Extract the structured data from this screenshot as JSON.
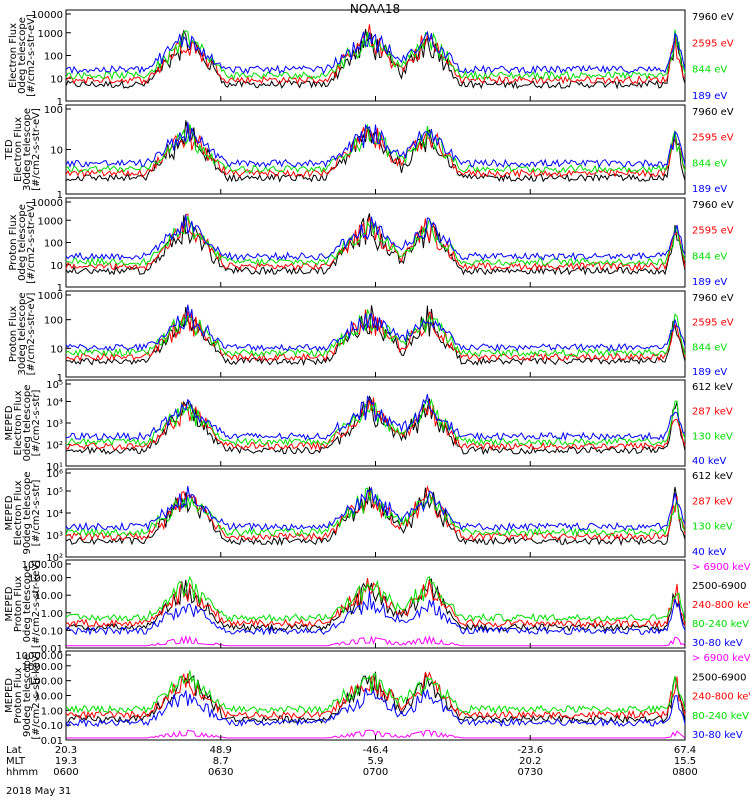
{
  "title": "NOAA18",
  "date_label": "2018 May 31",
  "colors": {
    "black": "#000000",
    "red": "#ff0000",
    "green": "#00e000",
    "blue": "#0000ff",
    "magenta": "#ff00ff"
  },
  "chart_data": {
    "type": "line",
    "x_ticks": [
      {
        "lat": "20.3",
        "mlt": "19.3",
        "hhmm": "0600"
      },
      {
        "lat": "48.9",
        "mlt": "8.7",
        "hhmm": "0630"
      },
      {
        "lat": "-46.4",
        "mlt": "5.9",
        "hhmm": "0700"
      },
      {
        "lat": "-23.6",
        "mlt": "20.2",
        "hhmm": "0730"
      },
      {
        "lat": "67.4",
        "mlt": "15.5",
        "hhmm": "0800"
      }
    ],
    "x_row_labels": [
      "Lat",
      "MLT",
      "hhmm"
    ],
    "panels": [
      {
        "ylabel": [
          "Electron Flux",
          "0deg telescope",
          "[#/cm2-s-str-eV]"
        ],
        "ytick_labels": [
          "1",
          "10",
          "100",
          "1000",
          "10000"
        ],
        "log_range": [
          0,
          4
        ],
        "channels": [
          {
            "label": "7960 eV",
            "color": "black"
          },
          {
            "label": "2595 eV",
            "color": "red"
          },
          {
            "label": "844 eV",
            "color": "green"
          },
          {
            "label": "189 eV",
            "color": "blue"
          }
        ]
      },
      {
        "ylabel": [
          "TED",
          "Electron Flux",
          "30deg telescope",
          "[#/cm2-s-str-eV]"
        ],
        "ytick_labels": [
          "1",
          "10",
          "100"
        ],
        "log_range": [
          0,
          3
        ],
        "channels": [
          {
            "label": "7960 eV",
            "color": "black"
          },
          {
            "label": "2595 eV",
            "color": "red"
          },
          {
            "label": "844 eV",
            "color": "green"
          },
          {
            "label": "189 eV",
            "color": "blue"
          }
        ]
      },
      {
        "ylabel": [
          "Proton Flux",
          "0deg telescope",
          "[#/cm2-s-str-eV]"
        ],
        "ytick_labels": [
          "1",
          "10",
          "100",
          "1000",
          "10000"
        ],
        "log_range": [
          0,
          4
        ],
        "channels": [
          {
            "label": "7960 eV",
            "color": "black"
          },
          {
            "label": "2595 eV",
            "color": "red"
          },
          {
            "label": "844 eV",
            "color": "green"
          },
          {
            "label": "189 eV",
            "color": "blue"
          }
        ]
      },
      {
        "ylabel": [
          "Proton Flux",
          "30deg telescope",
          "[#/cm2-s-str-eV]"
        ],
        "ytick_labels": [
          "1",
          "10",
          "100",
          "1000"
        ],
        "log_range": [
          0,
          3.6
        ],
        "channels": [
          {
            "label": "7960 eV",
            "color": "black"
          },
          {
            "label": "2595 eV",
            "color": "red"
          },
          {
            "label": "844 eV",
            "color": "green"
          },
          {
            "label": "189 eV",
            "color": "blue"
          }
        ]
      },
      {
        "ylabel": [
          "MEPED",
          "Electron Flux",
          "0deg telescope",
          "[#/cm2-s-str]"
        ],
        "ytick_labels": [
          "10¹",
          "10²",
          "10³",
          "10⁴",
          "10⁵"
        ],
        "log_range": [
          1,
          5
        ],
        "channels": [
          {
            "label": "612 keV",
            "color": "black"
          },
          {
            "label": "287 keV",
            "color": "red"
          },
          {
            "label": "130 keV",
            "color": "green"
          },
          {
            "label": "40 keV",
            "color": "blue"
          }
        ]
      },
      {
        "ylabel": [
          "MEPED",
          "Electron Flux",
          "90deg telescope",
          "[#/cm2-s-str]"
        ],
        "ytick_labels": [
          "10²",
          "10³",
          "10⁴",
          "10⁵",
          "10⁶"
        ],
        "log_range": [
          1.5,
          6
        ],
        "channels": [
          {
            "label": "612 keV",
            "color": "black"
          },
          {
            "label": "287 keV",
            "color": "red"
          },
          {
            "label": "130 keV",
            "color": "green"
          },
          {
            "label": "40 keV",
            "color": "blue"
          }
        ]
      },
      {
        "ylabel": [
          "MEPED",
          "Proton Flux",
          "0deg telescope",
          "[#/cm2-s-str-keV]"
        ],
        "ytick_labels": [
          "0.01",
          "0.10",
          "1.00",
          "10.00",
          "100.00",
          "1000.00"
        ],
        "log_range": [
          -2,
          3.7
        ],
        "channels": [
          {
            "label": "> 6900 keV",
            "color": "magenta"
          },
          {
            "label": "2500-6900",
            "color": "black"
          },
          {
            "label": "240-800 keV",
            "color": "red"
          },
          {
            "label": "80-240 keV",
            "color": "green"
          },
          {
            "label": "30-80 keV",
            "color": "blue"
          }
        ]
      },
      {
        "ylabel": [
          "MEPED",
          "Proton Flux",
          "90deg telescope",
          "[#/cm2-s-str-keV]"
        ],
        "ytick_labels": [
          "0.01",
          "0.10",
          "1.00",
          "10.00",
          "100.00",
          "1000.00",
          "10000.00"
        ],
        "log_range": [
          -2,
          4.7
        ],
        "channels": [
          {
            "label": "> 6900 keV",
            "color": "magenta"
          },
          {
            "label": "2500-6900",
            "color": "black"
          },
          {
            "label": "240-800 keV",
            "color": "red"
          },
          {
            "label": "80-240 keV",
            "color": "green"
          },
          {
            "label": "30-80 keV",
            "color": "blue"
          }
        ]
      }
    ]
  }
}
